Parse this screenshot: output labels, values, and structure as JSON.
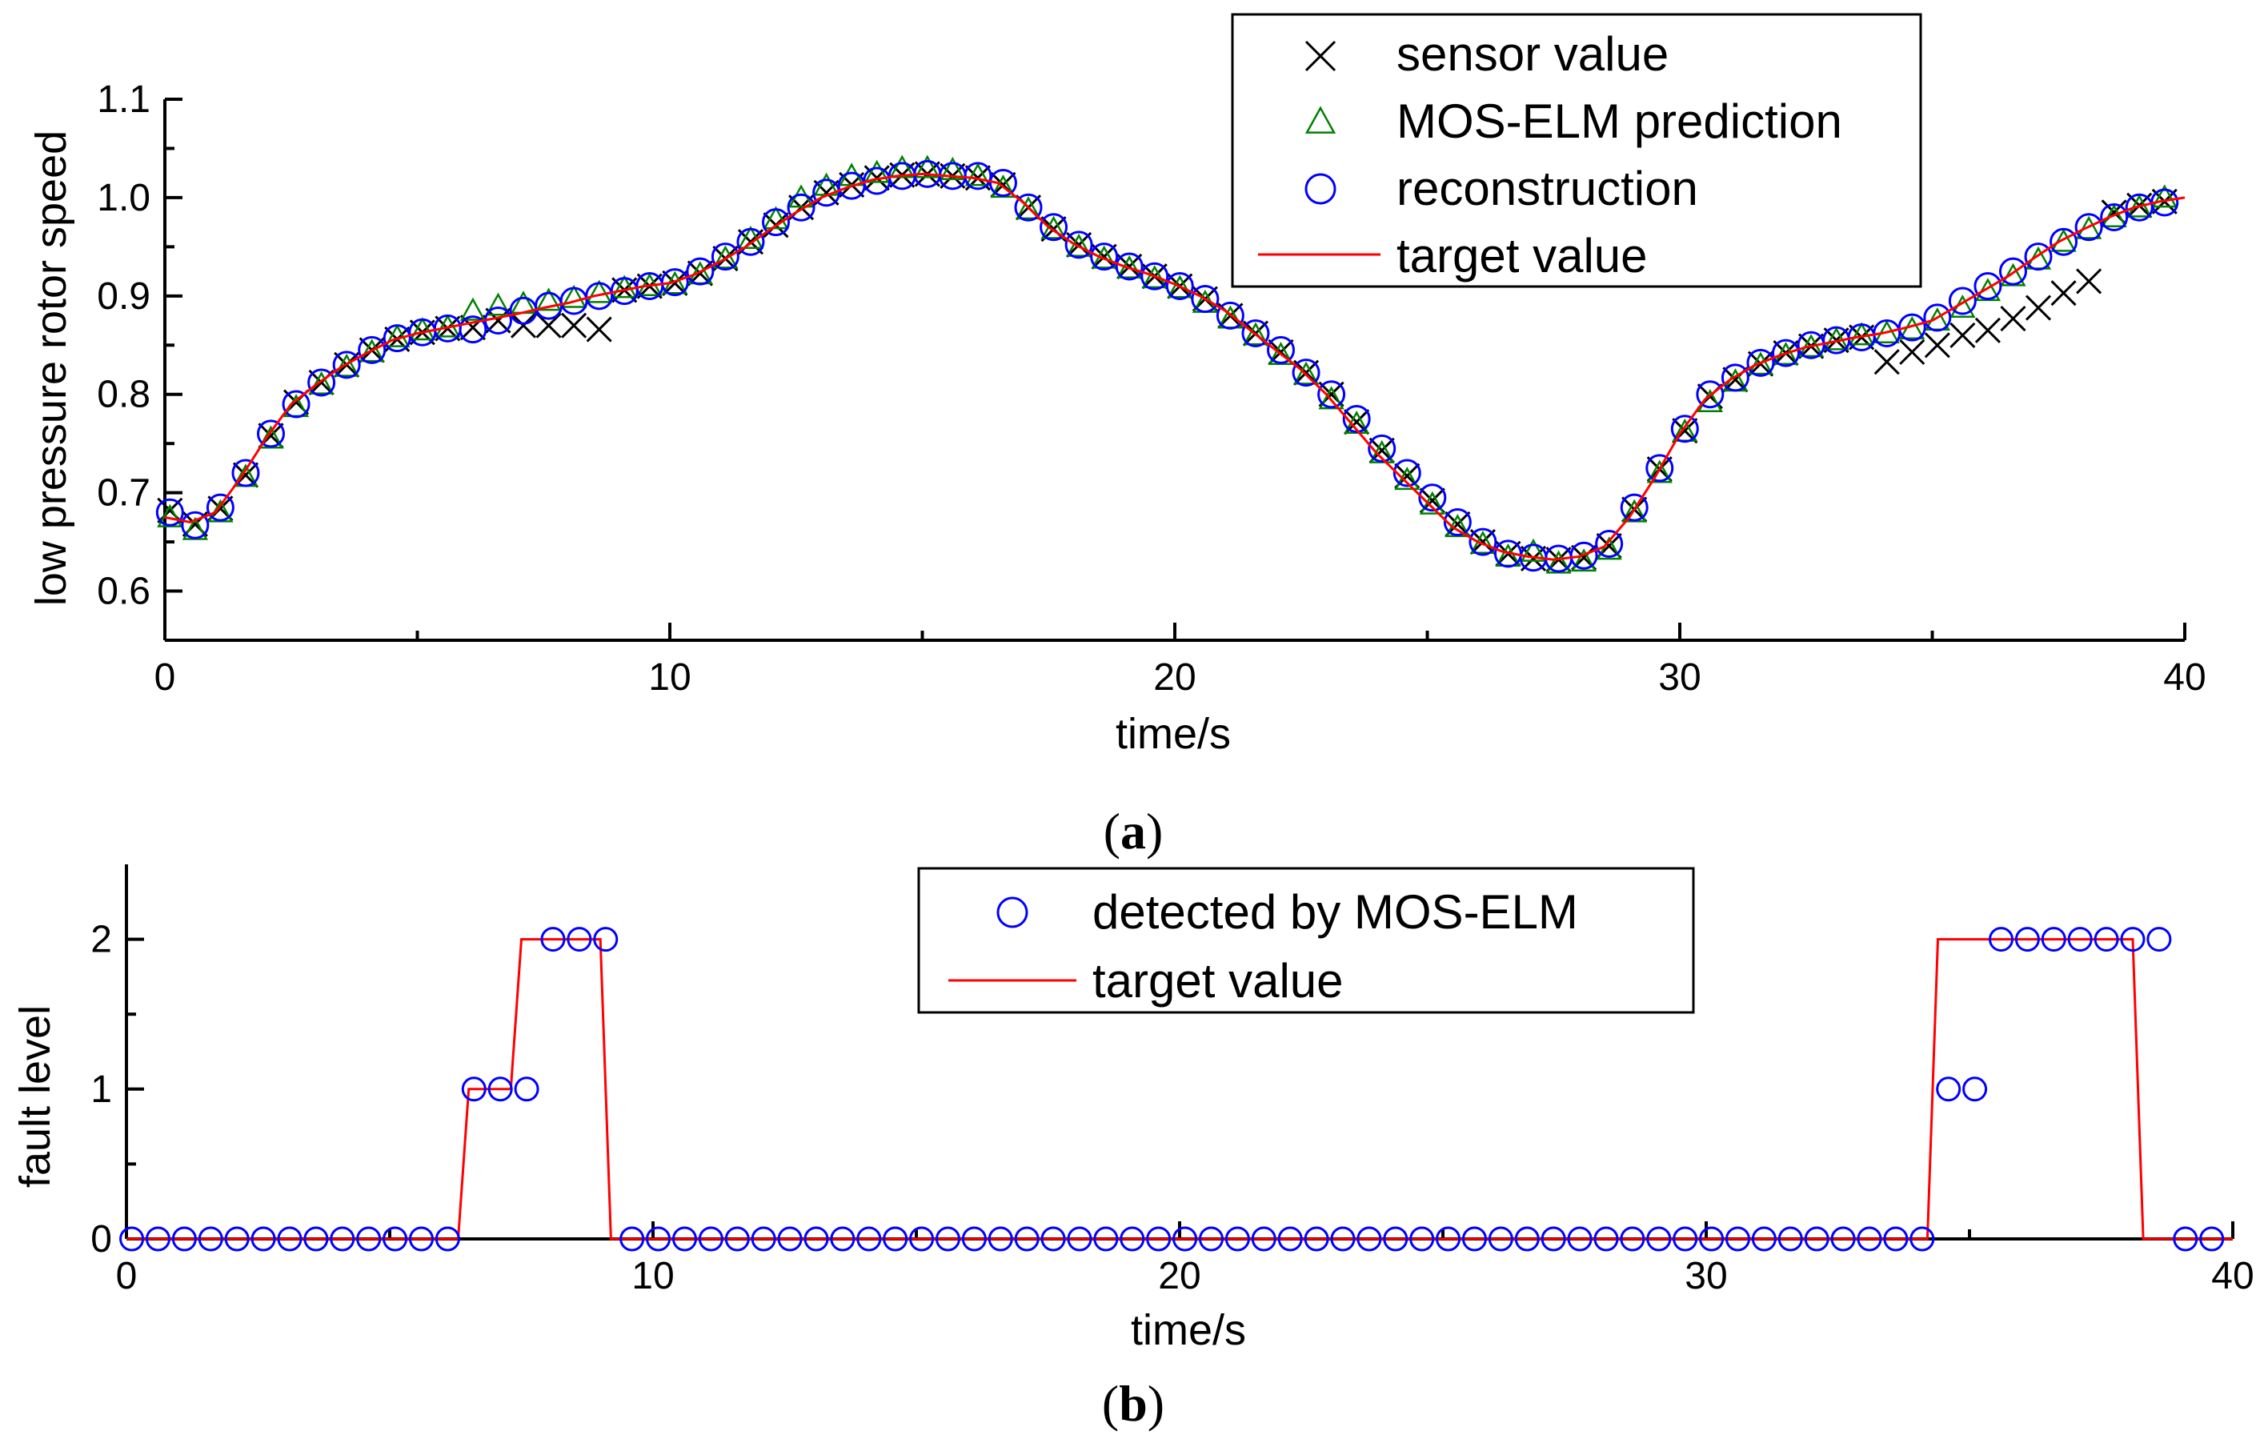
{
  "colors": {
    "sensor": "#000000",
    "prediction": "#008000",
    "reconstruction": "#0000ff",
    "target": "#ff0000",
    "axis": "#000000"
  },
  "chart_data": [
    {
      "type": "line",
      "panel_label": "a",
      "xlabel": "time/s",
      "ylabel": "low pressure rotor speed",
      "xlim": [
        0,
        40
      ],
      "ylim": [
        0.55,
        1.1
      ],
      "xticks": [
        0,
        10,
        20,
        30,
        40
      ],
      "yticks": [
        0.6,
        0.7,
        0.8,
        0.9,
        1.0,
        1.1
      ],
      "ytick_labels": [
        "0.6",
        "0.7",
        "0.8",
        "0.9",
        "1.0",
        "1.1"
      ],
      "legend_position": "top-right",
      "legend": [
        {
          "label": "sensor value",
          "marker": "x"
        },
        {
          "label": "MOS-ELM prediction",
          "marker": "triangle"
        },
        {
          "label": "reconstruction",
          "marker": "circle"
        },
        {
          "label": "target value",
          "marker": "line"
        }
      ],
      "target_curve": {
        "x": [
          0,
          0.5,
          1.0,
          1.5,
          2.0,
          2.5,
          3.0,
          3.5,
          4.0,
          4.5,
          5.0,
          5.5,
          6.0,
          6.5,
          7.0,
          7.5,
          8.0,
          8.5,
          9.0,
          9.5,
          10.0,
          10.5,
          11.0,
          11.5,
          12.0,
          12.5,
          13.0,
          13.5,
          14.0,
          14.5,
          15.0,
          15.5,
          16.0,
          16.5,
          17.0,
          17.5,
          18.0,
          18.5,
          19.0,
          19.5,
          20.0,
          20.5,
          21.0,
          21.5,
          22.0,
          22.5,
          23.0,
          23.5,
          24.0,
          24.5,
          25.0,
          25.5,
          26.0,
          26.5,
          27.0,
          27.5,
          28.0,
          28.5,
          29.0,
          29.5,
          30.0,
          30.5,
          31.0,
          31.5,
          32.0,
          32.5,
          33.0,
          33.5,
          34.0,
          34.5,
          35.0,
          35.5,
          36.0,
          36.5,
          37.0,
          37.5,
          38.0,
          38.5,
          39.0,
          39.5,
          40.0
        ],
        "y": [
          0.675,
          0.67,
          0.68,
          0.715,
          0.755,
          0.79,
          0.81,
          0.828,
          0.842,
          0.855,
          0.862,
          0.867,
          0.872,
          0.877,
          0.882,
          0.888,
          0.893,
          0.9,
          0.905,
          0.91,
          0.913,
          0.922,
          0.935,
          0.95,
          0.968,
          0.985,
          1.0,
          1.01,
          1.018,
          1.022,
          1.024,
          1.022,
          1.02,
          1.015,
          0.995,
          0.97,
          0.953,
          0.94,
          0.93,
          0.922,
          0.912,
          0.9,
          0.885,
          0.865,
          0.845,
          0.825,
          0.8,
          0.77,
          0.74,
          0.715,
          0.69,
          0.665,
          0.65,
          0.64,
          0.635,
          0.632,
          0.635,
          0.645,
          0.675,
          0.715,
          0.76,
          0.795,
          0.815,
          0.83,
          0.84,
          0.848,
          0.853,
          0.858,
          0.862,
          0.868,
          0.875,
          0.89,
          0.905,
          0.92,
          0.938,
          0.955,
          0.968,
          0.98,
          0.99,
          0.996,
          1.0
        ]
      },
      "reconstruction": {
        "x": [
          0.1,
          0.6,
          1.1,
          1.6,
          2.1,
          2.6,
          3.1,
          3.6,
          4.1,
          4.6,
          5.1,
          5.6,
          6.1,
          6.6,
          7.1,
          7.6,
          8.1,
          8.6,
          9.1,
          9.6,
          10.1,
          10.6,
          11.1,
          11.6,
          12.1,
          12.6,
          13.1,
          13.6,
          14.1,
          14.6,
          15.1,
          15.6,
          16.1,
          16.6,
          17.1,
          17.6,
          18.1,
          18.6,
          19.1,
          19.6,
          20.1,
          20.6,
          21.1,
          21.6,
          22.1,
          22.6,
          23.1,
          23.6,
          24.1,
          24.6,
          25.1,
          25.6,
          26.1,
          26.6,
          27.1,
          27.6,
          28.1,
          28.6,
          29.1,
          29.6,
          30.1,
          30.6,
          31.1,
          31.6,
          32.1,
          32.6,
          33.1,
          33.6,
          34.1,
          34.6,
          35.1,
          35.6,
          36.1,
          36.6,
          37.1,
          37.6,
          38.1,
          38.6,
          39.1,
          39.6
        ],
        "y": [
          0.68,
          0.667,
          0.685,
          0.72,
          0.76,
          0.79,
          0.812,
          0.83,
          0.845,
          0.857,
          0.863,
          0.867,
          0.866,
          0.875,
          0.885,
          0.89,
          0.895,
          0.9,
          0.905,
          0.91,
          0.914,
          0.925,
          0.94,
          0.955,
          0.975,
          0.99,
          1.005,
          1.012,
          1.017,
          1.022,
          1.024,
          1.022,
          1.022,
          1.015,
          0.99,
          0.97,
          0.952,
          0.94,
          0.93,
          0.92,
          0.91,
          0.897,
          0.88,
          0.862,
          0.845,
          0.822,
          0.8,
          0.775,
          0.745,
          0.72,
          0.695,
          0.67,
          0.65,
          0.638,
          0.634,
          0.633,
          0.636,
          0.648,
          0.685,
          0.725,
          0.765,
          0.8,
          0.817,
          0.832,
          0.842,
          0.85,
          0.855,
          0.858,
          0.862,
          0.868,
          0.878,
          0.895,
          0.91,
          0.925,
          0.94,
          0.955,
          0.97,
          0.98,
          0.99,
          0.995
        ]
      },
      "prediction": {
        "x": [
          0.1,
          0.6,
          1.1,
          1.6,
          2.1,
          2.6,
          3.1,
          3.6,
          4.1,
          4.6,
          5.1,
          5.6,
          6.1,
          6.6,
          7.1,
          7.6,
          8.1,
          8.6,
          9.1,
          9.6,
          10.1,
          10.6,
          11.1,
          11.6,
          12.1,
          12.6,
          13.1,
          13.6,
          14.1,
          14.6,
          15.1,
          15.6,
          16.1,
          16.6,
          17.1,
          17.6,
          18.1,
          18.6,
          19.1,
          19.6,
          20.1,
          20.6,
          21.1,
          21.6,
          22.1,
          22.6,
          23.1,
          23.6,
          24.1,
          24.6,
          25.1,
          25.6,
          26.1,
          26.6,
          27.1,
          27.6,
          28.1,
          28.6,
          29.1,
          29.6,
          30.1,
          30.6,
          31.1,
          31.6,
          32.1,
          32.6,
          33.1,
          33.6,
          34.1,
          34.6,
          35.1,
          35.6,
          36.1,
          36.6,
          37.1,
          37.6,
          38.1,
          38.6,
          39.1,
          39.6
        ],
        "y": [
          0.675,
          0.662,
          0.68,
          0.716,
          0.755,
          0.787,
          0.81,
          0.828,
          0.843,
          0.858,
          0.865,
          0.868,
          0.885,
          0.89,
          0.892,
          0.895,
          0.898,
          0.903,
          0.908,
          0.91,
          0.912,
          0.922,
          0.938,
          0.958,
          0.978,
          1.0,
          1.012,
          1.022,
          1.025,
          1.03,
          1.03,
          1.028,
          1.022,
          1.01,
          0.988,
          0.968,
          0.95,
          0.938,
          0.928,
          0.918,
          0.908,
          0.893,
          0.877,
          0.86,
          0.84,
          0.82,
          0.795,
          0.77,
          0.74,
          0.713,
          0.688,
          0.665,
          0.648,
          0.635,
          0.64,
          0.628,
          0.63,
          0.642,
          0.68,
          0.72,
          0.762,
          0.792,
          0.813,
          0.83,
          0.84,
          0.848,
          0.855,
          0.86,
          0.862,
          0.866,
          0.875,
          0.888,
          0.905,
          0.92,
          0.937,
          0.955,
          0.968,
          0.98,
          0.99,
          1.0
        ]
      },
      "sensor": {
        "x": [
          0.1,
          0.6,
          1.1,
          1.6,
          2.1,
          2.6,
          3.1,
          3.6,
          4.1,
          4.6,
          5.1,
          5.6,
          6.1,
          6.6,
          7.1,
          7.6,
          8.1,
          8.6,
          9.1,
          9.6,
          10.1,
          10.6,
          11.1,
          11.6,
          12.1,
          12.6,
          13.1,
          13.6,
          14.1,
          14.6,
          15.1,
          15.6,
          16.1,
          16.6,
          17.1,
          17.6,
          18.1,
          18.6,
          19.1,
          19.6,
          20.1,
          20.6,
          21.1,
          21.6,
          22.1,
          22.6,
          23.1,
          23.6,
          24.1,
          24.6,
          25.1,
          25.6,
          26.1,
          26.6,
          27.1,
          27.6,
          28.1,
          28.6,
          29.1,
          29.6,
          30.1,
          30.6,
          31.1,
          31.6,
          32.1,
          32.6,
          33.1,
          33.6,
          34.1,
          34.6,
          35.1,
          35.6,
          36.1,
          36.6,
          37.1,
          37.6,
          38.1,
          38.6,
          39.1,
          39.6
        ],
        "y": [
          0.682,
          0.668,
          0.684,
          0.718,
          0.758,
          0.792,
          0.812,
          0.83,
          0.845,
          0.856,
          0.863,
          0.867,
          0.868,
          0.875,
          0.87,
          0.87,
          0.87,
          0.866,
          0.906,
          0.91,
          0.913,
          0.923,
          0.938,
          0.955,
          0.972,
          0.99,
          1.005,
          1.013,
          1.02,
          1.023,
          1.024,
          1.022,
          1.02,
          1.013,
          0.99,
          0.968,
          0.952,
          0.94,
          0.93,
          0.92,
          0.91,
          0.897,
          0.88,
          0.862,
          0.843,
          0.822,
          0.8,
          0.772,
          0.743,
          0.717,
          0.692,
          0.668,
          0.65,
          0.638,
          0.633,
          0.632,
          0.634,
          0.646,
          0.683,
          0.724,
          0.763,
          0.798,
          0.815,
          0.831,
          0.842,
          0.849,
          0.855,
          0.858,
          0.833,
          0.843,
          0.85,
          0.86,
          0.865,
          0.877,
          0.888,
          0.903,
          0.915,
          0.985,
          0.992,
          0.996
        ]
      }
    },
    {
      "type": "line",
      "panel_label": "b",
      "xlabel": "time/s",
      "ylabel": "fault level",
      "xlim": [
        0,
        40
      ],
      "ylim": [
        0,
        2.5
      ],
      "xticks": [
        0,
        10,
        20,
        30,
        40
      ],
      "yticks": [
        0,
        1,
        2
      ],
      "ytick_labels": [
        "0",
        "1",
        "2"
      ],
      "legend_position": "top-center",
      "legend": [
        {
          "label": "detected by MOS-ELM",
          "marker": "circle"
        },
        {
          "label": "target value",
          "marker": "line"
        }
      ],
      "target_curve": {
        "x": [
          0,
          6.3,
          6.5,
          7.3,
          7.5,
          9.0,
          9.2,
          34.2,
          34.4,
          38.1,
          38.3,
          40
        ],
        "y": [
          0,
          0,
          1,
          1,
          2,
          2,
          0,
          0,
          2,
          2,
          0,
          0
        ]
      },
      "detected": {
        "x": [
          0.1,
          0.6,
          1.1,
          1.6,
          2.1,
          2.6,
          3.1,
          3.6,
          4.1,
          4.6,
          5.1,
          5.6,
          6.1,
          6.6,
          7.1,
          7.6,
          8.1,
          8.6,
          9.1,
          9.6,
          10.1,
          10.6,
          11.1,
          11.6,
          12.1,
          12.6,
          13.1,
          13.6,
          14.1,
          14.6,
          15.1,
          15.6,
          16.1,
          16.6,
          17.1,
          17.6,
          18.1,
          18.6,
          19.1,
          19.6,
          20.1,
          20.6,
          21.1,
          21.6,
          22.1,
          22.6,
          23.1,
          23.6,
          24.1,
          24.6,
          25.1,
          25.6,
          26.1,
          26.6,
          27.1,
          27.6,
          28.1,
          28.6,
          29.1,
          29.6,
          30.1,
          30.6,
          31.1,
          31.6,
          32.1,
          32.6,
          33.1,
          33.6,
          34.1,
          34.6,
          35.1,
          35.6,
          36.1,
          36.6,
          37.1,
          37.6,
          38.1,
          38.6,
          39.1,
          39.6
        ],
        "y": [
          0,
          0,
          0,
          0,
          0,
          0,
          0,
          0,
          0,
          0,
          0,
          0,
          0,
          1,
          1,
          1,
          2,
          2,
          2,
          0,
          0,
          0,
          0,
          0,
          0,
          0,
          0,
          0,
          0,
          0,
          0,
          0,
          0,
          0,
          0,
          0,
          0,
          0,
          0,
          0,
          0,
          0,
          0,
          0,
          0,
          0,
          0,
          0,
          0,
          0,
          0,
          0,
          0,
          0,
          0,
          0,
          0,
          0,
          0,
          0,
          0,
          0,
          0,
          0,
          0,
          0,
          0,
          0,
          0,
          1,
          1,
          2,
          2,
          2,
          2,
          2,
          2,
          2,
          0,
          0
        ]
      }
    }
  ]
}
